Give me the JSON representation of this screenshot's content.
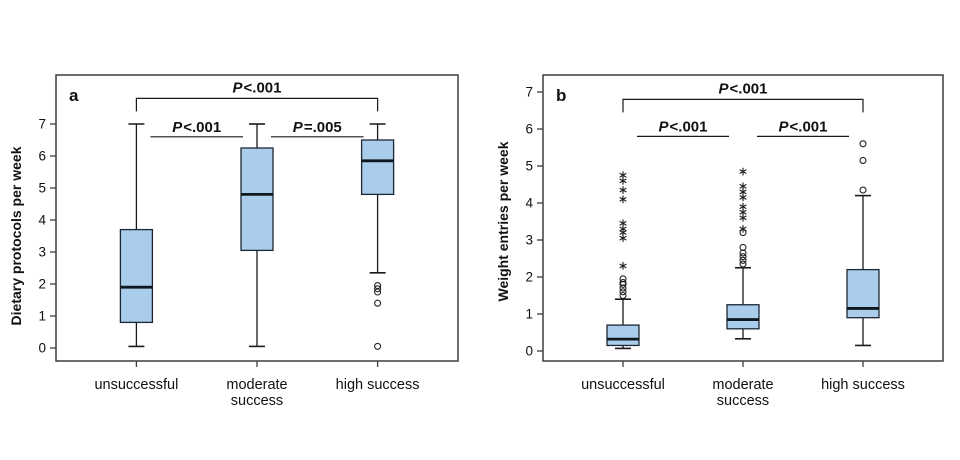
{
  "figure": {
    "background": "#ffffff",
    "box_fill": "#aacdec",
    "box_stroke": "#1c2733",
    "median_color": "#10181f",
    "whisker_color": "#1a1a1a",
    "outlier_color": "#222222",
    "frame_color": "#3d3d3d",
    "text_color": "#0d0d0d"
  },
  "chart_data": [
    {
      "type": "boxplot",
      "panel_label": "a",
      "ylabel": "Dietary protocols per week",
      "ylim": [
        0,
        7
      ],
      "yticks": [
        0,
        1,
        2,
        3,
        4,
        5,
        6,
        7
      ],
      "grid": false,
      "categories": [
        "unsuccessful",
        "moderate\nsuccess",
        "high success"
      ],
      "boxes": [
        {
          "category": "unsuccessful",
          "whisker_low": 0.05,
          "q1": 0.8,
          "median": 1.9,
          "q3": 3.7,
          "whisker_high": 7.0,
          "outliers_circle": [],
          "outliers_extreme": []
        },
        {
          "category": "moderate success",
          "whisker_low": 0.05,
          "q1": 3.05,
          "median": 4.8,
          "q3": 6.25,
          "whisker_high": 7.0,
          "outliers_circle": [],
          "outliers_extreme": []
        },
        {
          "category": "high success",
          "whisker_low": 2.35,
          "q1": 4.8,
          "median": 5.85,
          "q3": 6.5,
          "whisker_high": 7.0,
          "outliers_circle": [
            1.95,
            1.85,
            1.75,
            1.4,
            0.05
          ],
          "outliers_extreme": []
        }
      ],
      "annotations": [
        {
          "between": [
            0,
            1
          ],
          "label": "P<.001",
          "style": "line",
          "y": 6.6
        },
        {
          "between": [
            1,
            2
          ],
          "label": "P=.005",
          "style": "line",
          "y": 6.6
        },
        {
          "between": [
            0,
            2
          ],
          "label": "P<.001",
          "style": "bracket",
          "y": 7.8
        }
      ]
    },
    {
      "type": "boxplot",
      "panel_label": "b",
      "ylabel": "Weight entries per week",
      "ylim": [
        0,
        7
      ],
      "yticks": [
        0,
        1,
        2,
        3,
        4,
        5,
        6,
        7
      ],
      "grid": false,
      "categories": [
        "unsuccessful",
        "moderate\nsuccess",
        "high success"
      ],
      "boxes": [
        {
          "category": "unsuccessful",
          "whisker_low": 0.07,
          "q1": 0.15,
          "median": 0.32,
          "q3": 0.7,
          "whisker_high": 1.4,
          "outliers_circle": [
            1.95,
            1.85,
            1.8,
            1.7,
            1.6,
            1.5
          ],
          "outliers_extreme": [
            2.3,
            3.05,
            3.2,
            3.3,
            3.45,
            4.1,
            4.35,
            4.6,
            4.75
          ]
        },
        {
          "category": "moderate success",
          "whisker_low": 0.33,
          "q1": 0.6,
          "median": 0.85,
          "q3": 1.25,
          "whisker_high": 2.25,
          "outliers_circle": [
            2.35,
            2.45,
            2.55,
            2.65,
            2.8,
            3.2
          ],
          "outliers_extreme": [
            3.3,
            3.6,
            3.75,
            3.9,
            4.15,
            4.3,
            4.45,
            4.85
          ]
        },
        {
          "category": "high success",
          "whisker_low": 0.15,
          "q1": 0.9,
          "median": 1.15,
          "q3": 2.2,
          "whisker_high": 4.2,
          "outliers_circle": [
            4.35,
            5.15,
            5.6
          ],
          "outliers_extreme": []
        }
      ],
      "annotations": [
        {
          "between": [
            0,
            1
          ],
          "label": "P<.001",
          "style": "line",
          "y": 5.8
        },
        {
          "between": [
            1,
            2
          ],
          "label": "P<.001",
          "style": "line",
          "y": 5.8
        },
        {
          "between": [
            0,
            2
          ],
          "label": "P<.001",
          "style": "bracket",
          "y": 6.8
        }
      ]
    }
  ]
}
